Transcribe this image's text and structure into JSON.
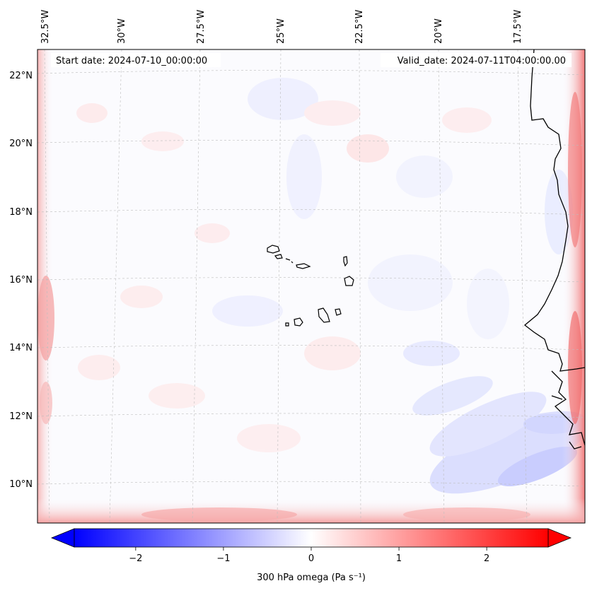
{
  "map": {
    "start_date": "Start date: 2024-07-10_00:00:00",
    "valid_date": "Valid_date: 2024-07-11T04:00:00.00",
    "lon_labels": [
      "32.5°W",
      "30°W",
      "27.5°W",
      "25°W",
      "22.5°W",
      "20°W",
      "17.5°W"
    ],
    "lat_labels": [
      "22°N",
      "20°N",
      "18°N",
      "16°N",
      "14°N",
      "12°N",
      "10°N"
    ],
    "features": [
      "Cape Verde islands",
      "West African coastline"
    ]
  },
  "colorbar": {
    "label": "300 hPa omega (Pa s⁻¹)",
    "ticks": [
      "−2",
      "−1",
      "0",
      "1",
      "2"
    ],
    "tick_values": [
      -2,
      -1,
      0,
      1,
      2
    ],
    "range": [
      -2.7,
      2.7
    ],
    "colors": {
      "negative": "#0000ff",
      "zero": "#ffffff",
      "positive": "#ff0000"
    }
  }
}
